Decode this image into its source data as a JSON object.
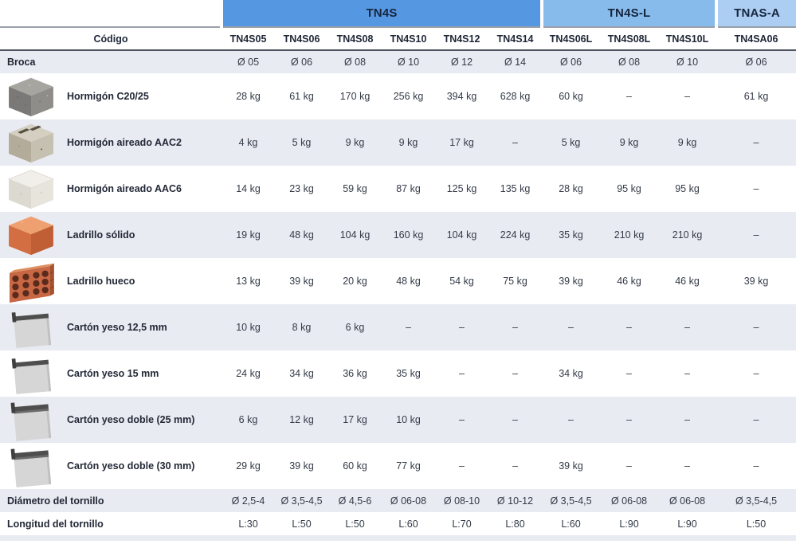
{
  "table": {
    "groups": [
      {
        "label": "TN4S",
        "span": 6,
        "color": "#5697e2"
      },
      {
        "label": "TN4S-L",
        "span": 3,
        "color": "#87bbec"
      },
      {
        "label": "TNAS-A",
        "span": 1,
        "color": "#accef2"
      }
    ],
    "code_header": "Código",
    "codes": [
      "TN4S05",
      "TN4S06",
      "TN4S08",
      "TN4S10",
      "TN4S12",
      "TN4S14",
      "TN4S06L",
      "TN4S08L",
      "TN4S10L",
      "TN4SA06"
    ],
    "rows": [
      {
        "label": "Broca",
        "icon": null,
        "values": [
          "Ø 05",
          "Ø 06",
          "Ø 08",
          "Ø 10",
          "Ø 12",
          "Ø 14",
          "Ø 06",
          "Ø 08",
          "Ø 10",
          "Ø 06"
        ]
      },
      {
        "label": "Hormigón C20/25",
        "icon": "concrete-c20-image",
        "values": [
          "28 kg",
          "61 kg",
          "170 kg",
          "256 kg",
          "394 kg",
          "628 kg",
          "60 kg",
          "–",
          "–",
          "61 kg"
        ]
      },
      {
        "label": "Hormigón aireado AAC2",
        "icon": "aerated-concrete-aac2-image",
        "values": [
          "4 kg",
          "5 kg",
          "9 kg",
          "9 kg",
          "17 kg",
          "–",
          "5 kg",
          "9 kg",
          "9 kg",
          "–"
        ]
      },
      {
        "label": "Hormigón aireado AAC6",
        "icon": "aerated-concrete-aac6-image",
        "values": [
          "14 kg",
          "23 kg",
          "59 kg",
          "87 kg",
          "125 kg",
          "135 kg",
          "28 kg",
          "95 kg",
          "95 kg",
          "–"
        ]
      },
      {
        "label": "Ladrillo sólido",
        "icon": "solid-brick-image",
        "values": [
          "19 kg",
          "48 kg",
          "104 kg",
          "160 kg",
          "104 kg",
          "224 kg",
          "35 kg",
          "210 kg",
          "210 kg",
          "–"
        ]
      },
      {
        "label": "Ladrillo hueco",
        "icon": "hollow-brick-image",
        "values": [
          "13 kg",
          "39 kg",
          "20 kg",
          "48 kg",
          "54 kg",
          "75 kg",
          "39 kg",
          "46 kg",
          "46 kg",
          "39 kg"
        ]
      },
      {
        "label": "Cartón yeso 12,5 mm",
        "icon": "plasterboard-image",
        "values": [
          "10 kg",
          "8 kg",
          "6 kg",
          "–",
          "–",
          "–",
          "–",
          "–",
          "–",
          "–"
        ]
      },
      {
        "label": "Cartón yeso 15 mm",
        "icon": "plasterboard-image",
        "values": [
          "24 kg",
          "34 kg",
          "36 kg",
          "35 kg",
          "–",
          "–",
          "34 kg",
          "–",
          "–",
          "–"
        ]
      },
      {
        "label": "Cartón yeso doble (25 mm)",
        "icon": "plasterboard-double-image",
        "values": [
          "6 kg",
          "12 kg",
          "17 kg",
          "10 kg",
          "–",
          "–",
          "–",
          "–",
          "–",
          "–"
        ]
      },
      {
        "label": "Cartón yeso doble (30 mm)",
        "icon": "plasterboard-double-image",
        "values": [
          "29 kg",
          "39 kg",
          "60 kg",
          "77 kg",
          "–",
          "–",
          "39 kg",
          "–",
          "–",
          "–"
        ]
      },
      {
        "label": "Diámetro del tornillo",
        "icon": null,
        "values": [
          "Ø 2,5-4",
          "Ø 3,5-4,5",
          "Ø 4,5-6",
          "Ø 06-08",
          "Ø 08-10",
          "Ø 10-12",
          "Ø 3,5-4,5",
          "Ø 06-08",
          "Ø 06-08",
          "Ø 3,5-4,5"
        ]
      },
      {
        "label": "Longitud del tornillo",
        "icon": null,
        "values": [
          "L:30",
          "L:50",
          "L:50",
          "L:60",
          "L:70",
          "L:80",
          "L:60",
          "L:90",
          "L:90",
          "L:50"
        ]
      }
    ]
  },
  "colors": {
    "group_tn4s": "#5697e2",
    "group_tn4s_l": "#87bbec",
    "group_tnas_a": "#accef2",
    "shaded_row": "#e9ebf2",
    "header_text": "#16263e",
    "body_text": "#333a47"
  }
}
